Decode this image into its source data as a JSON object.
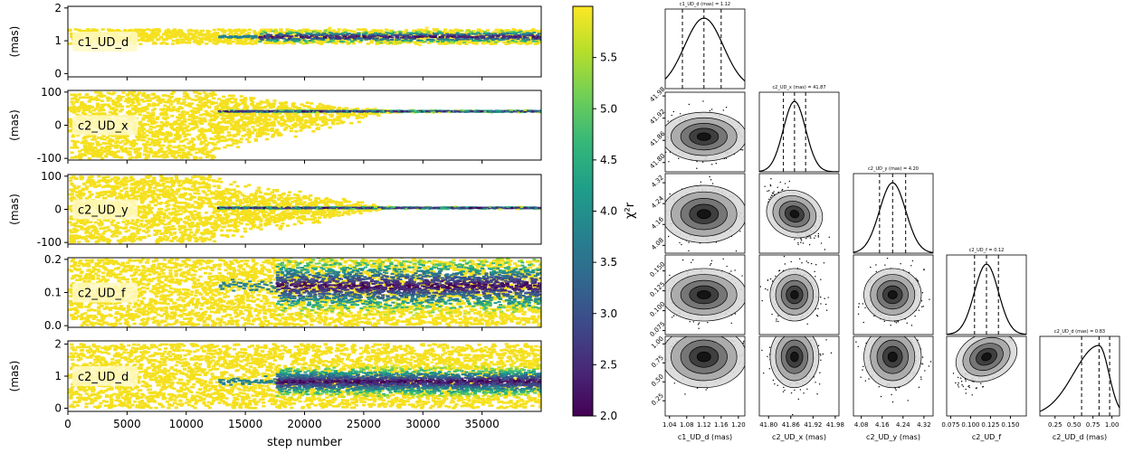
{
  "chart_data": [
    {
      "type": "scatter",
      "subtype": "mcmc-trace",
      "xlabel": "step number",
      "xlim": [
        0,
        40000
      ],
      "xticks": [
        "0",
        "5000",
        "10000",
        "15000",
        "20000",
        "25000",
        "30000",
        "35000"
      ],
      "xtick_values": [
        0,
        5000,
        10000,
        15000,
        20000,
        25000,
        30000,
        35000
      ],
      "colormap": "viridis",
      "colorbar": {
        "label": "χ²r",
        "range": [
          2.0,
          6.0
        ],
        "ticks": [
          "2.0",
          "2.5",
          "3.0",
          "3.5",
          "4.0",
          "4.5",
          "5.0",
          "5.5"
        ],
        "tick_values": [
          2.0,
          2.5,
          3.0,
          3.5,
          4.0,
          4.5,
          5.0,
          5.5
        ]
      },
      "panels": [
        {
          "param": "c1_UD_d",
          "ylabel": "(mas)",
          "ylim": [
            -0.1,
            2.05
          ],
          "yticks": [
            "0",
            "1",
            "2"
          ],
          "ytick_values": [
            0,
            1,
            2
          ],
          "burnin_spread": [
            0.9,
            1.35
          ],
          "converged": 1.12,
          "converged_spread": 0.09
        },
        {
          "param": "c2_UD_x",
          "ylabel": "(mas)",
          "ylim": [
            -105,
            105
          ],
          "yticks": [
            "-100",
            "0",
            "100"
          ],
          "ytick_values": [
            -100,
            0,
            100
          ],
          "burnin_spread": [
            -100,
            100
          ],
          "converged": 41.87,
          "converged_spread": 1.5
        },
        {
          "param": "c2_UD_y",
          "ylabel": "(mas)",
          "ylim": [
            -105,
            105
          ],
          "yticks": [
            "-100",
            "0",
            "100"
          ],
          "ytick_values": [
            -100,
            0,
            100
          ],
          "burnin_spread": [
            -100,
            100
          ],
          "converged": 4.2,
          "converged_spread": 1.5
        },
        {
          "param": "c2_UD_f",
          "ylabel": "",
          "ylim": [
            -0.005,
            0.205
          ],
          "yticks": [
            "0.0",
            "0.1",
            "0.2"
          ],
          "ytick_values": [
            0,
            0.1,
            0.2
          ],
          "burnin_spread": [
            0.0,
            0.2
          ],
          "converged": 0.12,
          "converged_spread": 0.04
        },
        {
          "param": "c2_UD_d",
          "ylabel": "(mas)",
          "ylim": [
            -0.1,
            2.1
          ],
          "yticks": [
            "0",
            "1",
            "2"
          ],
          "ytick_values": [
            0,
            1,
            2
          ],
          "burnin_spread": [
            0.0,
            2.0
          ],
          "converged": 0.83,
          "converged_spread": 0.22
        }
      ]
    },
    {
      "type": "heatmap",
      "subtype": "corner-plot",
      "params": [
        {
          "name": "c1_UD_d",
          "xlabel": "c1_UD_d (mas)",
          "title": "c1_UD_d (mas) = 1.12",
          "range": [
            1.03,
            1.215
          ],
          "ticks": [
            "1.04",
            "1.08",
            "1.12",
            "1.16",
            "1.20"
          ],
          "tick_values": [
            1.04,
            1.08,
            1.12,
            1.16,
            1.2
          ],
          "median": 1.12,
          "q16": 1.07,
          "q84": 1.16
        },
        {
          "name": "c2_UD_x",
          "xlabel": "c2_UD_x (mas)",
          "title": "c2_UD_x (mas) = 41.87",
          "range": [
            41.775,
            41.99
          ],
          "ticks": [
            "41.80",
            "41.86",
            "41.92",
            "41.98"
          ],
          "tick_values": [
            41.8,
            41.86,
            41.92,
            41.98
          ],
          "median": 41.87,
          "q16": 41.84,
          "q84": 41.9
        },
        {
          "name": "c2_UD_y",
          "xlabel": "c2_UD_y (mas)",
          "title": "c2_UD_y (mas) = 4.20",
          "range": [
            4.05,
            4.355
          ],
          "ticks": [
            "4.08",
            "4.16",
            "4.24",
            "4.32"
          ],
          "tick_values": [
            4.08,
            4.16,
            4.24,
            4.32
          ],
          "median": 4.2,
          "q16": 4.15,
          "q84": 4.25
        },
        {
          "name": "c2_UD_f",
          "xlabel": "c2_UD_f",
          "title": "c2_UD_f = 0.12",
          "range": [
            0.07,
            0.17
          ],
          "ticks": [
            "0.075",
            "0.100",
            "0.125",
            "0.150"
          ],
          "tick_values": [
            0.075,
            0.1,
            0.125,
            0.15
          ],
          "median": 0.12,
          "q16": 0.105,
          "q84": 0.135
        },
        {
          "name": "c2_UD_d",
          "xlabel": "c2_UD_d (mas)",
          "title": "c2_UD_d (mas) = 0.83",
          "range": [
            0.05,
            1.1
          ],
          "ticks": [
            "0.25",
            "0.50",
            "0.75",
            "1.00"
          ],
          "tick_values": [
            0.25,
            0.5,
            0.75,
            1.0
          ],
          "median": 0.83,
          "q16": 0.6,
          "q84": 0.97
        }
      ],
      "correlations": [
        [
          1,
          0,
          0,
          0,
          0
        ],
        [
          0,
          1,
          -0.55,
          0,
          0
        ],
        [
          0,
          -0.55,
          1,
          0,
          0
        ],
        [
          0,
          0,
          0,
          1,
          0.7
        ],
        [
          0,
          0,
          0,
          0.7,
          1
        ]
      ]
    }
  ]
}
